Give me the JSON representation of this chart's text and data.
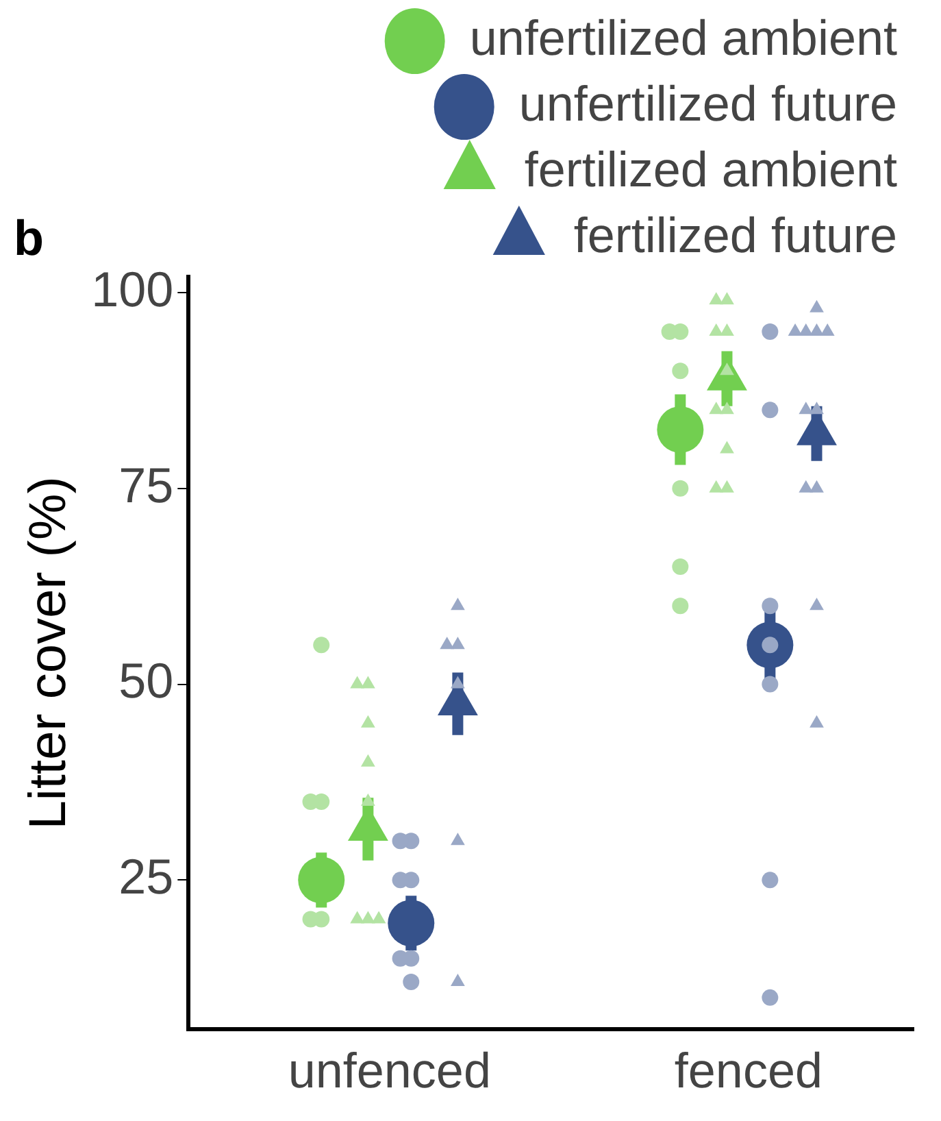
{
  "chart_data": {
    "type": "scatter",
    "ylabel": "Litter cover (%)",
    "annotations": [
      "b"
    ],
    "categories": [
      "unfenced",
      "fenced"
    ],
    "ylim": [
      6,
      102
    ],
    "yticks": [
      25,
      50,
      75,
      100
    ],
    "grid": false,
    "legend": "top right",
    "series": [
      {
        "name": "unfertilized ambient",
        "color": "#72cf50",
        "marker": "circle",
        "x": [
          "unfenced",
          "fenced"
        ],
        "values": [
          25,
          82.5
        ],
        "errors": [
          3.5,
          4.5
        ]
      },
      {
        "name": "unfertilized future",
        "color": "#36528b",
        "marker": "circle",
        "x": [
          "unfenced",
          "fenced"
        ],
        "values": [
          19.5,
          55
        ],
        "errors": [
          3.5,
          5
        ]
      },
      {
        "name": "fertilized ambient",
        "color": "#72cf50",
        "marker": "triangle",
        "x": [
          "unfenced",
          "fenced"
        ],
        "values": [
          31.5,
          89
        ],
        "errors": [
          4,
          3.5
        ]
      },
      {
        "name": "fertilized future",
        "color": "#36528b",
        "marker": "triangle",
        "x": [
          "unfenced",
          "fenced"
        ],
        "values": [
          47.5,
          82
        ],
        "errors": [
          4,
          3.5
        ]
      },
      {
        "color": "#b3e3a3",
        "marker": "circle",
        "x": [
          "unfenced",
          "unfenced",
          "unfenced",
          "unfenced",
          "unfenced",
          "fenced",
          "fenced",
          "fenced",
          "fenced",
          "fenced",
          "fenced"
        ],
        "values": [
          55,
          35,
          35,
          20,
          20,
          95,
          95,
          90,
          75,
          65,
          60
        ]
      },
      {
        "color": "#9aa8c6",
        "marker": "circle",
        "x": [
          "unfenced",
          "unfenced",
          "unfenced",
          "unfenced",
          "unfenced",
          "unfenced",
          "unfenced",
          "fenced",
          "fenced",
          "fenced",
          "fenced",
          "fenced",
          "fenced",
          "fenced"
        ],
        "values": [
          30,
          30,
          25,
          25,
          15,
          15,
          12,
          95,
          85,
          60,
          55,
          50,
          25,
          10
        ]
      },
      {
        "color": "#b3e3a3",
        "marker": "triangle",
        "x": [
          "unfenced",
          "unfenced",
          "unfenced",
          "unfenced",
          "unfenced",
          "unfenced",
          "unfenced",
          "unfenced",
          "fenced",
          "fenced",
          "fenced",
          "fenced",
          "fenced",
          "fenced",
          "fenced",
          "fenced",
          "fenced",
          "fenced"
        ],
        "values": [
          50,
          50,
          45,
          40,
          35,
          20,
          20,
          20,
          95,
          95,
          99,
          99,
          90,
          85,
          85,
          80,
          75,
          75
        ]
      },
      {
        "color": "#9aa8c6",
        "marker": "triangle",
        "x": [
          "unfenced",
          "unfenced",
          "unfenced",
          "unfenced",
          "unfenced",
          "unfenced",
          "fenced",
          "fenced",
          "fenced",
          "fenced",
          "fenced",
          "fenced",
          "fenced",
          "fenced",
          "fenced",
          "fenced",
          "fenced"
        ],
        "values": [
          30,
          12,
          60,
          55,
          55,
          50,
          95,
          95,
          95,
          95,
          98,
          85,
          85,
          75,
          75,
          60,
          45
        ]
      }
    ]
  }
}
